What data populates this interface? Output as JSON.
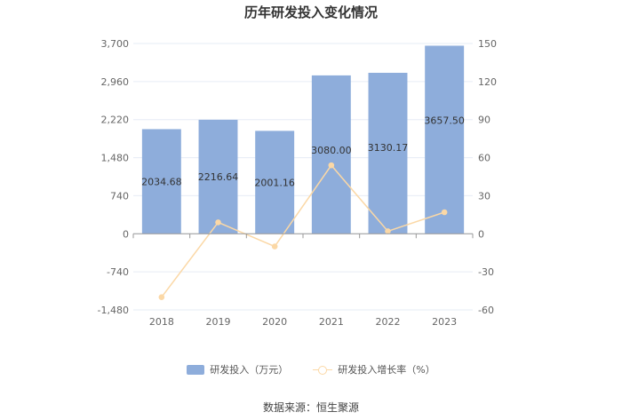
{
  "title": "历年研发投入变化情况",
  "source": "数据来源：恒生聚源",
  "colors": {
    "bar": "#8eaddb",
    "line": "#fbd8a6",
    "grid": "#e6ecf5",
    "axis": "#999999"
  },
  "chart_data": {
    "type": "bar+line",
    "title": "历年研发投入变化情况",
    "categories": [
      "2018",
      "2019",
      "2020",
      "2021",
      "2022",
      "2023"
    ],
    "series": [
      {
        "name": "研发投入（万元）",
        "type": "bar",
        "axis": "left",
        "values": [
          2034.68,
          2216.64,
          2001.16,
          3080.0,
          3130.17,
          3657.5
        ],
        "labels": [
          "2034.68",
          "2216.64",
          "2001.16",
          "3080.00",
          "3130.17",
          "3657.50"
        ]
      },
      {
        "name": "研发投入增长率（%）",
        "type": "line",
        "axis": "right",
        "values": [
          -50,
          9,
          -10,
          54,
          2,
          17
        ]
      }
    ],
    "left_axis": {
      "min": -1480,
      "max": 3700,
      "ticks": [
        "3,700",
        "2,960",
        "2,220",
        "1,480",
        "740",
        "0",
        "-740",
        "-1,480"
      ]
    },
    "right_axis": {
      "min": -60,
      "max": 150,
      "ticks": [
        "150",
        "120",
        "90",
        "60",
        "30",
        "0",
        "-30",
        "-60"
      ]
    },
    "grid": true,
    "legend_position": "bottom"
  }
}
